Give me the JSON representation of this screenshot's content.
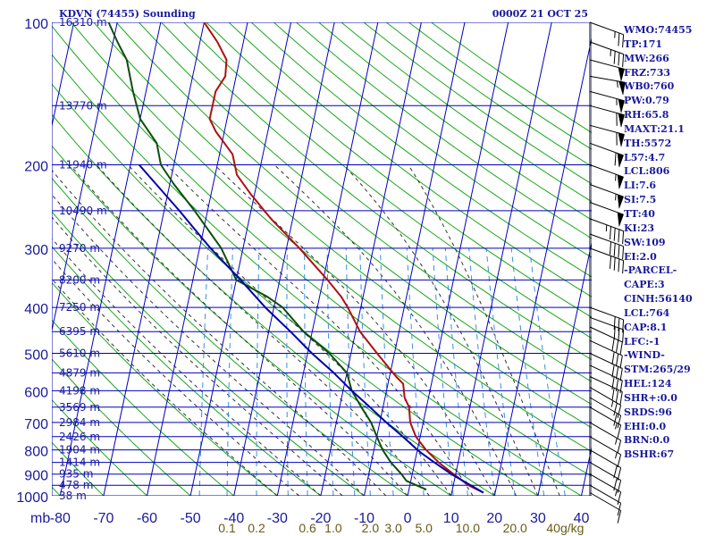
{
  "header": {
    "title": "KDVN (74455) Sounding",
    "date": "0000Z 21 OCT 25"
  },
  "side_panel": [
    "WMO:74455",
    "TP:171",
    "MW:266",
    "FRZ:733",
    "WB0:760",
    "PW:0.79",
    "RH:65.8",
    "MAXT:21.1",
    "TH:5572",
    "L57:4.7",
    "LCL:806",
    "LI:7.6",
    "SI:7.5",
    "TT:40",
    "KI:23",
    "SW:109",
    "EI:2.0",
    "-PARCEL-",
    "CAPE:3",
    "CINH:56140",
    "LCL:764",
    "CAP:8.1",
    "LFC:-1",
    "-WIND-",
    "STM:265/29",
    "HEL:124",
    "SHR+:0.0",
    "SRDS:96",
    "EHI:0.0",
    "BRN:0.0",
    "BSHR:67"
  ],
  "colors": {
    "isobar": "#0000bb",
    "isotherm": "#0000bb",
    "dry_adiabat": "#1aa81a",
    "moist_adiabat": "#333333",
    "mixing_ratio": "#3a8fe0",
    "temperature": "#b01010",
    "dewpoint": "#0d4d0d",
    "parcel": "#0000aa",
    "label": "#1a1a9c",
    "mr_label": "#6a5a14",
    "wind": "#000000"
  },
  "chart_data": {
    "type": "line",
    "title": "KDVN (74455) Sounding",
    "xlabel": "",
    "ylabel": "mb",
    "y_axis_unit": "mb",
    "x_axis_unit": "°C (skewed)",
    "pressure_range": [
      1000,
      100
    ],
    "temperature_range_at_1000mb": [
      -80,
      40
    ],
    "pressure_ticks": [
      100,
      200,
      300,
      400,
      500,
      600,
      700,
      800,
      900,
      1000
    ],
    "isotherm_labels": [
      -80,
      -70,
      -60,
      -50,
      -40,
      -30,
      -20,
      -10,
      0,
      10,
      20,
      30,
      40
    ],
    "isotherm_tick_text": [
      "-80",
      "-70",
      "-60",
      "-50",
      "-40",
      "-30",
      "-20",
      "-10",
      "0",
      "10",
      "20",
      "30",
      "40"
    ],
    "height_labels": [
      {
        "p": 100,
        "text": "16310 m"
      },
      {
        "p": 150,
        "text": "13770 m"
      },
      {
        "p": 200,
        "text": "11940 m"
      },
      {
        "p": 250,
        "text": "10490 m"
      },
      {
        "p": 300,
        "text": "9270 m"
      },
      {
        "p": 350,
        "text": "8200 m"
      },
      {
        "p": 400,
        "text": "7250 m"
      },
      {
        "p": 450,
        "text": "6395 m"
      },
      {
        "p": 500,
        "text": "5610 m"
      },
      {
        "p": 550,
        "text": "4879 m"
      },
      {
        "p": 600,
        "text": "4198 m"
      },
      {
        "p": 650,
        "text": "3569 m"
      },
      {
        "p": 700,
        "text": "2984 m"
      },
      {
        "p": 750,
        "text": "2426 m"
      },
      {
        "p": 800,
        "text": "1904 m"
      },
      {
        "p": 850,
        "text": "1414 m"
      },
      {
        "p": 900,
        "text": "935 m"
      },
      {
        "p": 950,
        "text": "478 m"
      },
      {
        "p": 1000,
        "text": "38 m"
      }
    ],
    "mixing_ratio_labels": [
      {
        "w": 0.1,
        "text": "0.1"
      },
      {
        "w": 0.2,
        "text": "0.2"
      },
      {
        "w": 0.6,
        "text": "0.6"
      },
      {
        "w": 1.0,
        "text": "1.0"
      },
      {
        "w": 2.0,
        "text": "2.0"
      },
      {
        "w": 3.0,
        "text": "3.0"
      },
      {
        "w": 5.0,
        "text": "5.0"
      },
      {
        "w": 10.0,
        "text": "10.0"
      },
      {
        "w": 20.0,
        "text": "20.0"
      },
      {
        "w": 40.0,
        "text": "40g/kg"
      }
    ],
    "series": [
      {
        "name": "temperature",
        "points": [
          {
            "p": 985,
            "t": 17.3
          },
          {
            "p": 950,
            "t": 13.5
          },
          {
            "p": 900,
            "t": 9.5
          },
          {
            "p": 850,
            "t": 5.5
          },
          {
            "p": 800,
            "t": 2.0
          },
          {
            "p": 750,
            "t": -1.0
          },
          {
            "p": 700,
            "t": -3.0
          },
          {
            "p": 650,
            "t": -4.0
          },
          {
            "p": 620,
            "t": -5.5
          },
          {
            "p": 600,
            "t": -6.0
          },
          {
            "p": 580,
            "t": -6.5
          },
          {
            "p": 560,
            "t": -8.5
          },
          {
            "p": 500,
            "t": -14.0
          },
          {
            "p": 450,
            "t": -19.0
          },
          {
            "p": 400,
            "t": -23.0
          },
          {
            "p": 380,
            "t": -25.0
          },
          {
            "p": 350,
            "t": -29.0
          },
          {
            "p": 300,
            "t": -37.0
          },
          {
            "p": 260,
            "t": -45.0
          },
          {
            "p": 230,
            "t": -51.0
          },
          {
            "p": 210,
            "t": -55.0
          },
          {
            "p": 190,
            "t": -57.0
          },
          {
            "p": 170,
            "t": -62.0
          },
          {
            "p": 160,
            "t": -64.0
          },
          {
            "p": 150,
            "t": -64.0
          },
          {
            "p": 140,
            "t": -64.0
          },
          {
            "p": 130,
            "t": -62.5
          },
          {
            "p": 120,
            "t": -63.0
          },
          {
            "p": 110,
            "t": -66.0
          },
          {
            "p": 100,
            "t": -70.0
          }
        ]
      },
      {
        "name": "dewpoint",
        "points": [
          {
            "p": 970,
            "t": 4.0
          },
          {
            "p": 950,
            "t": 1.5
          },
          {
            "p": 930,
            "t": -1.0
          },
          {
            "p": 900,
            "t": -2.5
          },
          {
            "p": 850,
            "t": -5.5
          },
          {
            "p": 800,
            "t": -8.0
          },
          {
            "p": 750,
            "t": -10.0
          },
          {
            "p": 700,
            "t": -12.0
          },
          {
            "p": 650,
            "t": -15.0
          },
          {
            "p": 600,
            "t": -18.0
          },
          {
            "p": 550,
            "t": -20.0
          },
          {
            "p": 500,
            "t": -25.0
          },
          {
            "p": 450,
            "t": -32.0
          },
          {
            "p": 400,
            "t": -38.0
          },
          {
            "p": 380,
            "t": -42.0
          },
          {
            "p": 350,
            "t": -50.0
          },
          {
            "p": 300,
            "t": -55.0
          },
          {
            "p": 250,
            "t": -63.0
          },
          {
            "p": 220,
            "t": -69.0
          },
          {
            "p": 200,
            "t": -73.0
          },
          {
            "p": 180,
            "t": -75.0
          },
          {
            "p": 160,
            "t": -80.0
          },
          {
            "p": 140,
            "t": -83.0
          },
          {
            "p": 120,
            "t": -86.0
          },
          {
            "p": 110,
            "t": -89.0
          },
          {
            "p": 100,
            "t": -92.0
          }
        ]
      },
      {
        "name": "parcel",
        "points": [
          {
            "p": 985,
            "t": 17.3
          },
          {
            "p": 900,
            "t": 9.0
          },
          {
            "p": 850,
            "t": 4.5
          },
          {
            "p": 806,
            "t": 0.5
          },
          {
            "p": 750,
            "t": -4.0
          },
          {
            "p": 700,
            "t": -8.5
          },
          {
            "p": 650,
            "t": -13.0
          },
          {
            "p": 600,
            "t": -18.0
          },
          {
            "p": 550,
            "t": -23.0
          },
          {
            "p": 500,
            "t": -29.0
          },
          {
            "p": 450,
            "t": -35.0
          },
          {
            "p": 400,
            "t": -42.0
          },
          {
            "p": 350,
            "t": -49.0
          },
          {
            "p": 300,
            "t": -57.5
          },
          {
            "p": 250,
            "t": -66.5
          },
          {
            "p": 200,
            "t": -78.0
          }
        ]
      }
    ],
    "wind_barbs": [
      {
        "p": 100,
        "dir": 290,
        "spd": 25
      },
      {
        "p": 110,
        "dir": 290,
        "spd": 35
      },
      {
        "p": 120,
        "dir": 285,
        "spd": 50
      },
      {
        "p": 130,
        "dir": 280,
        "spd": 55
      },
      {
        "p": 140,
        "dir": 285,
        "spd": 55
      },
      {
        "p": 150,
        "dir": 285,
        "spd": 60
      },
      {
        "p": 165,
        "dir": 285,
        "spd": 60
      },
      {
        "p": 180,
        "dir": 290,
        "spd": 60
      },
      {
        "p": 200,
        "dir": 290,
        "spd": 55
      },
      {
        "p": 220,
        "dir": 290,
        "spd": 55
      },
      {
        "p": 240,
        "dir": 290,
        "spd": 50
      },
      {
        "p": 260,
        "dir": 290,
        "spd": 45
      },
      {
        "p": 280,
        "dir": 290,
        "spd": 40
      },
      {
        "p": 300,
        "dir": 290,
        "spd": 40
      },
      {
        "p": 400,
        "dir": 290,
        "spd": 30
      },
      {
        "p": 420,
        "dir": 290,
        "spd": 30
      },
      {
        "p": 440,
        "dir": 295,
        "spd": 30
      },
      {
        "p": 470,
        "dir": 295,
        "spd": 30
      },
      {
        "p": 500,
        "dir": 295,
        "spd": 30
      },
      {
        "p": 530,
        "dir": 295,
        "spd": 30
      },
      {
        "p": 560,
        "dir": 295,
        "spd": 30
      },
      {
        "p": 590,
        "dir": 300,
        "spd": 25
      },
      {
        "p": 620,
        "dir": 300,
        "spd": 20
      },
      {
        "p": 650,
        "dir": 300,
        "spd": 15
      },
      {
        "p": 700,
        "dir": 300,
        "spd": 15
      },
      {
        "p": 750,
        "dir": 300,
        "spd": 15
      },
      {
        "p": 800,
        "dir": 300,
        "spd": 20
      },
      {
        "p": 850,
        "dir": 300,
        "spd": 20
      },
      {
        "p": 900,
        "dir": 300,
        "spd": 15
      },
      {
        "p": 950,
        "dir": 300,
        "spd": 10
      },
      {
        "p": 985,
        "dir": 300,
        "spd": 10
      }
    ]
  }
}
